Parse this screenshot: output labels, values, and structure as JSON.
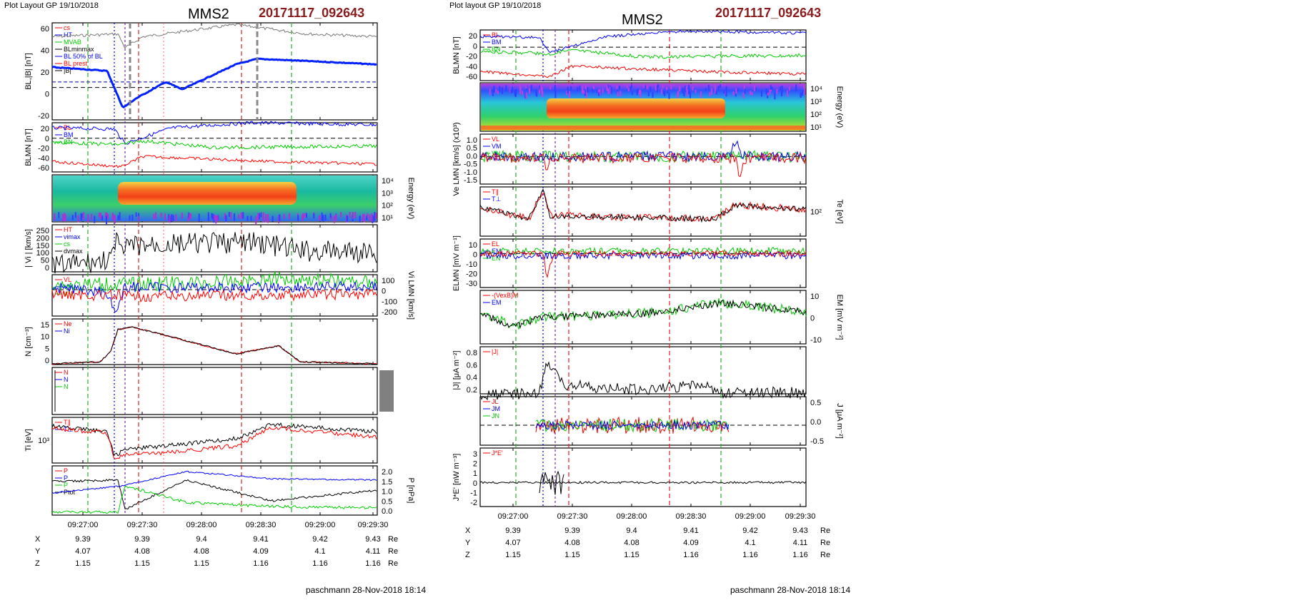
{
  "left_figure": {
    "header": "Plot Layout GP 19/10/2018",
    "title": "MMS2",
    "event_id": "20171117_092643",
    "footer": "paschmann 28-Nov-2018 18:14",
    "x_ticks": [
      "09:27:00",
      "09:27:30",
      "09:28:00",
      "09:28:30",
      "09:29:00",
      "09:29:30"
    ],
    "ephemeris": [
      {
        "label": "X",
        "values": [
          "9.39",
          "9.39",
          "9.4",
          "9.41",
          "9.42",
          "9.43"
        ],
        "unit": "Re"
      },
      {
        "label": "Y",
        "values": [
          "4.07",
          "4.08",
          "4.08",
          "4.09",
          "4.1",
          "4.11"
        ],
        "unit": "Re"
      },
      {
        "label": "Z",
        "values": [
          "1.15",
          "1.15",
          "1.15",
          "1.16",
          "1.16",
          "1.16"
        ],
        "unit": "Re"
      }
    ],
    "panels": [
      {
        "ylabel": "BL,|B| [nT]",
        "ticks": [
          "60",
          "40",
          "20",
          "0",
          "-20"
        ],
        "legend": [
          "cs",
          "HT",
          "MVAB",
          "BLminmax",
          "BL 50% of BL",
          "BL prest",
          "|B|"
        ]
      },
      {
        "ylabel": "BLMN [nT]",
        "ticks": [
          "20",
          "0",
          "-20",
          "-40",
          "-60"
        ],
        "legend": [
          "BL",
          "BM",
          "BN"
        ]
      },
      {
        "ylabel": "Energy (eV)",
        "ticks": [
          "10⁴",
          "10³",
          "10²",
          "10¹"
        ],
        "right": true
      },
      {
        "ylabel": "| Vi | [km/s]",
        "ticks": [
          "250",
          "200",
          "150",
          "100",
          "50",
          "0"
        ],
        "legend": [
          "HT",
          "vimax",
          "cs",
          "dvmax"
        ]
      },
      {
        "ylabel": "Vi LMN [km/s]",
        "ticks": [
          "100",
          "0",
          "-100",
          "-200"
        ],
        "legend": [
          "VL",
          "VM",
          "VN"
        ],
        "right": true
      },
      {
        "ylabel": "N [cm⁻³]",
        "ticks": [
          "15",
          "10",
          "5",
          "0"
        ],
        "legend": [
          "Ne",
          "Ni"
        ]
      },
      {
        "ylabel": "",
        "ticks": [],
        "legend": [
          "N",
          "N",
          "N"
        ]
      },
      {
        "ylabel": "Ti [eV]",
        "ticks": [
          "10³"
        ],
        "legend": [
          "T∥",
          "T⊥"
        ]
      },
      {
        "ylabel": "P [nPa]",
        "ticks": [
          "2.0",
          "1.5",
          "1.0",
          "0.5",
          "0.0"
        ],
        "legend": [
          "P",
          "P",
          "P",
          "Ptot"
        ],
        "right": true
      }
    ]
  },
  "right_figure": {
    "header": "Plot layout GP 19/10/2018",
    "title": "MMS2",
    "event_id": "20171117_092643",
    "footer": "paschmann 28-Nov-2018 18:14",
    "x_ticks": [
      "09:27:00",
      "09:27:30",
      "09:28:00",
      "09:28:30",
      "09:29:00",
      "09:29:30"
    ],
    "ephemeris": [
      {
        "label": "X",
        "values": [
          "9.39",
          "9.39",
          "9.4",
          "9.41",
          "9.42",
          "9.43"
        ],
        "unit": "Re"
      },
      {
        "label": "Y",
        "values": [
          "4.07",
          "4.08",
          "4.08",
          "4.09",
          "4.1",
          "4.11"
        ],
        "unit": "Re"
      },
      {
        "label": "Z",
        "values": [
          "1.15",
          "1.15",
          "1.15",
          "1.16",
          "1.16",
          "1.16"
        ],
        "unit": "Re"
      }
    ],
    "panels": [
      {
        "ylabel": "BLMN [nT]",
        "ticks": [
          "20",
          "0",
          "-20",
          "-40",
          "-60"
        ],
        "legend": [
          "BL",
          "BM",
          "BN"
        ]
      },
      {
        "ylabel": "Energy (eV)",
        "ticks": [
          "10⁴",
          "10³",
          "10²",
          "10¹"
        ],
        "right": true
      },
      {
        "ylabel": "Ve LMN [km/s] (x10³)",
        "ticks": [
          "1.0",
          "0.5",
          "0.0",
          "-0.5",
          "-1.0",
          "-1.5"
        ],
        "legend": [
          "VL",
          "VM",
          "VN"
        ]
      },
      {
        "ylabel": "Te [eV]",
        "ticks": [
          "10²"
        ],
        "legend": [
          "T∥",
          "T⊥"
        ],
        "right": true
      },
      {
        "ylabel": "ELMN [mV m⁻¹]",
        "ticks": [
          "10",
          "0",
          "-10",
          "-20",
          "-30"
        ],
        "legend": [
          "EL",
          "EM",
          "EN"
        ]
      },
      {
        "ylabel": "EM [mV m⁻²]",
        "ticks": [
          "10",
          "0",
          "-10"
        ],
        "legend": [
          "-(VexB)M",
          "EM"
        ],
        "right": true
      },
      {
        "ylabel": "|J| [μA m⁻²]",
        "ticks": [
          "0.8",
          "0.6",
          "0.4",
          "0.2"
        ],
        "legend": [
          "|J|"
        ]
      },
      {
        "ylabel": "J [μA m⁻²]",
        "ticks": [
          "0.5",
          "0.0",
          "-0.5"
        ],
        "legend": [
          "JL",
          "JM",
          "JN"
        ],
        "right": true
      },
      {
        "ylabel": "J*E' [nW m⁻³]",
        "ticks": [
          "3",
          "2",
          "1",
          "0",
          "-1",
          "-2"
        ],
        "legend": [
          "J*E'"
        ]
      }
    ]
  },
  "colors": {
    "event": "#8b1a1a",
    "L": "#0000ff",
    "M": "#00cc00",
    "N": "#ff0000",
    "black": "#000000"
  },
  "chart_data": [
    {
      "type": "line",
      "title": "MMS2",
      "subtitle": "20171117_092643",
      "xlabel": "",
      "x": [
        "09:27:00",
        "09:27:30",
        "09:28:00",
        "09:28:30",
        "09:29:00",
        "09:29:30"
      ],
      "series": [
        {
          "name": "|B|",
          "values": [
            55,
            55,
            58,
            62,
            55,
            55
          ]
        },
        {
          "name": "BL",
          "values": [
            20,
            -15,
            5,
            30,
            27,
            25
          ]
        },
        {
          "name": "Ne",
          "values": [
            0.5,
            13,
            10,
            5,
            1,
            0.5
          ]
        },
        {
          "name": "Ni",
          "values": [
            0.5,
            13,
            10,
            5,
            1,
            0.5
          ]
        }
      ]
    },
    {
      "type": "line",
      "title": "MMS2",
      "subtitle": "20171117_092643",
      "xlabel": "",
      "x": [
        "09:27:00",
        "09:27:30",
        "09:28:00",
        "09:28:30",
        "09:29:00",
        "09:29:30"
      ],
      "series": [
        {
          "name": "BL",
          "values": [
            20,
            15,
            27,
            30,
            28,
            25
          ]
        },
        {
          "name": "BM",
          "values": [
            -15,
            -10,
            -15,
            -17,
            -20,
            -15
          ]
        },
        {
          "name": "BN",
          "values": [
            -40,
            -45,
            -45,
            -40,
            -45,
            -50
          ]
        },
        {
          "name": "|J|",
          "values": [
            0.0,
            0.3,
            0.15,
            0.15,
            0.05,
            0.05
          ]
        }
      ]
    }
  ]
}
